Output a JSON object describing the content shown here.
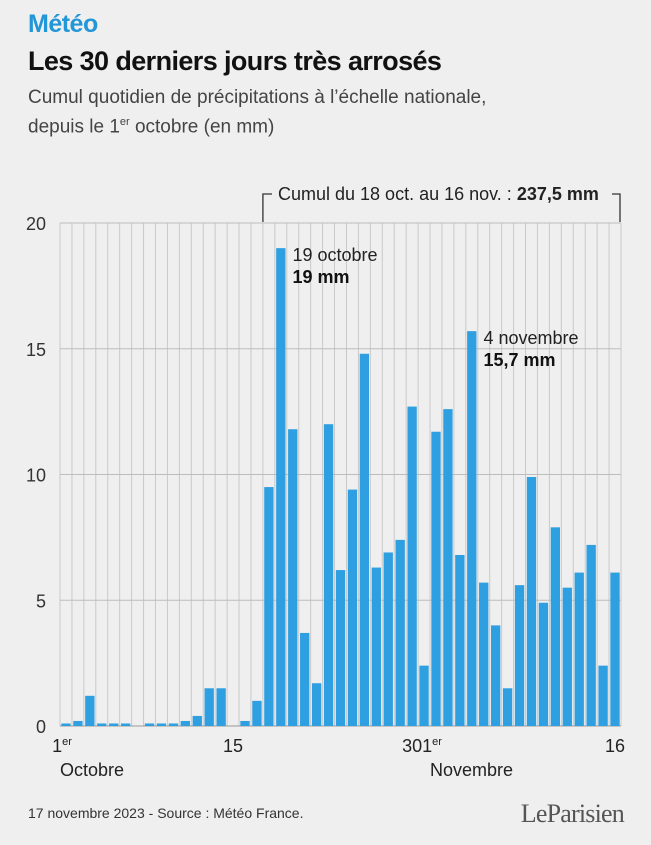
{
  "header": {
    "kicker": "Météo",
    "title": "Les 30 derniers jours très arrosés",
    "subtitle_line1": "Cumul quotidien de précipitations à l’échelle nationale,",
    "subtitle_line2_pre": "depuis le 1",
    "subtitle_line2_sup": "er",
    "subtitle_line2_post": " octobre (en mm)"
  },
  "footer": {
    "source": "17 novembre 2023 - Source : Météo France.",
    "logo_left": "Le",
    "logo_right": "Parisien"
  },
  "colors": {
    "bar": "#2e9fe0",
    "grid": "#c9c9c9",
    "background": "#efefef"
  },
  "chart_data": {
    "type": "bar",
    "unit": "mm",
    "ylim": [
      0,
      20
    ],
    "yticks": [
      0,
      5,
      10,
      15,
      20
    ],
    "grid": true,
    "x": [
      "1 oct.",
      "2 oct.",
      "3 oct.",
      "4 oct.",
      "5 oct.",
      "6 oct.",
      "7 oct.",
      "8 oct.",
      "9 oct.",
      "10 oct.",
      "11 oct.",
      "12 oct.",
      "13 oct.",
      "14 oct.",
      "15 oct.",
      "16 oct.",
      "17 oct.",
      "18 oct.",
      "19 oct.",
      "20 oct.",
      "21 oct.",
      "22 oct.",
      "23 oct.",
      "24 oct.",
      "25 oct.",
      "26 oct.",
      "27 oct.",
      "28 oct.",
      "29 oct.",
      "30 oct.",
      "31 oct.",
      "1 nov.",
      "2 nov.",
      "3 nov.",
      "4 nov.",
      "5 nov.",
      "6 nov.",
      "7 nov.",
      "8 nov.",
      "9 nov.",
      "10 nov.",
      "11 nov.",
      "12 nov.",
      "13 nov.",
      "14 nov.",
      "15 nov.",
      "16 nov."
    ],
    "values": [
      0.1,
      0.2,
      1.2,
      0.1,
      0.1,
      0.1,
      0.0,
      0.1,
      0.1,
      0.1,
      0.2,
      0.4,
      1.5,
      1.5,
      0.0,
      0.2,
      1.0,
      9.5,
      19.0,
      11.8,
      3.7,
      1.7,
      12.0,
      6.2,
      9.4,
      14.8,
      6.3,
      6.9,
      7.4,
      12.7,
      2.4,
      11.7,
      12.6,
      6.8,
      15.7,
      5.7,
      4.0,
      1.5,
      5.6,
      9.9,
      4.9,
      7.9,
      5.5,
      6.1,
      7.2,
      2.4,
      6.1
    ],
    "xtick_labels": [
      {
        "index": 0,
        "label": "1",
        "sup": "er",
        "sub": "Octobre"
      },
      {
        "index": 14,
        "label": "15",
        "sup": "",
        "sub": ""
      },
      {
        "index": 29,
        "label": "30",
        "sup": "",
        "sub": ""
      },
      {
        "index": 31,
        "label": "1",
        "sup": "er",
        "sub": "Novembre"
      },
      {
        "index": 46,
        "label": "16",
        "sup": "",
        "sub": ""
      }
    ],
    "bracket": {
      "from_index": 17,
      "to_index": 46,
      "label": "Cumul du 18 oct. au 16 nov. : ",
      "value": "237,5 mm"
    },
    "annotations": [
      {
        "index": 18,
        "date": "19 octobre",
        "value": "19 mm"
      },
      {
        "index": 34,
        "date": "4 novembre",
        "value": "15,7 mm"
      }
    ]
  }
}
